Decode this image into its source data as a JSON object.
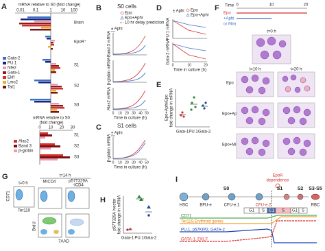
{
  "panels": {
    "A": {
      "label": "A",
      "axis_title": "mRNA relative to S0 (fold change)",
      "ticks": [
        "0.01",
        "0.1",
        "1",
        "10",
        "100"
      ],
      "groups": [
        "Brain",
        "EpoR⁺",
        "S1",
        "S2",
        "S3"
      ],
      "legend": [
        "Gata-2",
        "PU.1",
        "Nfe2",
        "Gata-1",
        "Eklf",
        "Lmo2",
        "Tal1"
      ],
      "axis_title_2": [
        "mRNA relative to S0",
        "(fold change)"
      ],
      "ticks_2": [
        "0",
        "10",
        "20",
        "30"
      ],
      "legend_2": [
        "Alas2",
        "Band 3",
        "β-globin"
      ],
      "groups_2": [
        "S1",
        "S2",
        "S3"
      ]
    },
    "B": {
      "label": "B",
      "title": "S0 cells",
      "legend": [
        "Epo",
        "Epo+Aphi",
        "10 hr delay prediction"
      ],
      "treatment": "± Aphi",
      "y_labels": [
        "Band 3 mRNA",
        "β-globin mRNA",
        "Alas2 mRNA"
      ],
      "x_ticks": [
        "0",
        "10",
        "20",
        "30",
        "40",
        "50"
      ],
      "x_label": "Time in culture (h)"
    },
    "C": {
      "label": "C",
      "title": "S1 cells",
      "treatment": "± Aphi",
      "y_label": "β-globin mRNA",
      "x_ticks": [
        "0",
        "10",
        "20",
        "30",
        "40",
        "50"
      ],
      "x_label": "Time in culture (h)"
    },
    "D": {
      "label": "D",
      "treatment": "± Aphi",
      "legend": [
        "Epo",
        "Epo+Aphi"
      ],
      "y_labels": [
        "PU.1 mRNA",
        "Gata-2 mRNA"
      ],
      "x_ticks": [
        "0",
        "10",
        "20"
      ],
      "x_label": "Time in culture (h)"
    },
    "E": {
      "label": "E",
      "y_label": [
        "Epo+Aphi/Epo",
        "fold change in mRNA"
      ],
      "categories": [
        "Gata-1",
        "PU.1",
        "Gata-2"
      ]
    },
    "F": {
      "label": "F",
      "time": "Time",
      "ticks": [
        "0",
        "10",
        "20"
      ],
      "conditions": [
        "Epo",
        "+Aphi",
        "or Mim"
      ],
      "t0": "t=0 h",
      "t10": "t=10 h",
      "t20": "t=20 h",
      "rows": [
        "Epo",
        "Epo+Aphi",
        "Epo+Mim"
      ]
    },
    "G": {
      "label": "G",
      "t0": "t=0 h",
      "t14": "t=14 h",
      "col1": "MICD4",
      "col2": [
        "p57T329A",
        "-ICD4"
      ],
      "axes": [
        "CD71",
        "Ter119",
        "BrdU",
        "7AAD"
      ]
    },
    "H": {
      "label": "H",
      "y_label": [
        "p57T329A /vector",
        "fold change in mRNA"
      ],
      "categories": [
        "Gata-1",
        "PU.1",
        "Gata-2"
      ]
    },
    "I": {
      "label": "I",
      "dependence": [
        "EpoR",
        "dependence"
      ],
      "stages": [
        "S0",
        "S1",
        "S2",
        "S3-S5"
      ],
      "cells": [
        "HSC",
        "BFU-e",
        "CFU-e.1",
        "CFU-e.2",
        "RBC"
      ],
      "phases": [
        "G1",
        "S",
        "G1",
        "S",
        "G1",
        "S"
      ],
      "markers": [
        "CD71",
        "Ter119,Erythroid genes",
        "PU.1, p57KIP2, GATA-2",
        "GATA-1, EKLF"
      ]
    }
  }
}
